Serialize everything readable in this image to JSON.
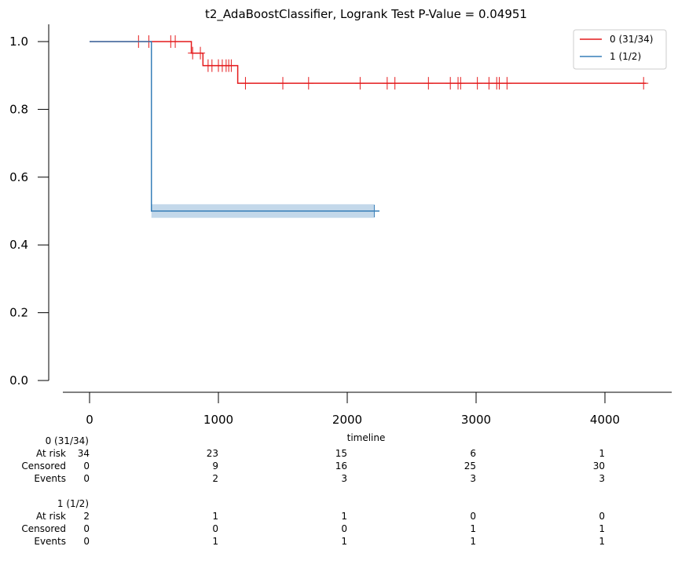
{
  "chart_data": {
    "type": "line",
    "title": "t2_AdaBoostClassifier, Logrank Test P-Value = 0.04951",
    "xlabel": "timeline",
    "ylabel": "",
    "xlim": [
      -200,
      4500
    ],
    "ylim": [
      0.0,
      1.05
    ],
    "xticks": [
      0,
      1000,
      2000,
      3000,
      4000
    ],
    "xtick_labels": [
      "0",
      "1000",
      "2000",
      "3000",
      "4000"
    ],
    "yticks": [
      0.0,
      0.2,
      0.4,
      0.6,
      0.8,
      1.0
    ],
    "ytick_labels": [
      "0.0",
      "0.2",
      "0.4",
      "0.6",
      "0.8",
      "1.0"
    ],
    "grid": false,
    "legend_position": "top-right",
    "series": [
      {
        "name": "0 (31/34)",
        "color": "#e41a1c",
        "steps": [
          [
            0,
            1.0
          ],
          [
            790,
            0.966
          ],
          [
            880,
            0.929
          ],
          [
            1150,
            0.877
          ],
          [
            4320,
            0.877
          ]
        ],
        "censor_times": [
          380,
          460,
          630,
          665,
          800,
          860,
          920,
          950,
          1000,
          1030,
          1060,
          1080,
          1100,
          1210,
          1500,
          1700,
          2100,
          2310,
          2370,
          2630,
          2800,
          2860,
          2880,
          3010,
          3100,
          3160,
          3180,
          3240,
          4300
        ]
      },
      {
        "name": "1 (1/2)",
        "color": "#377eb8",
        "steps": [
          [
            0,
            1.0
          ],
          [
            480,
            0.5
          ],
          [
            2250,
            0.5
          ]
        ],
        "ci_band": {
          "x": [
            480,
            2210
          ],
          "lower": 0.48,
          "upper": 0.52
        },
        "censor_times": [
          2210
        ]
      }
    ],
    "at_risk_table": {
      "x_positions": [
        0,
        1000,
        2000,
        3000,
        4000
      ],
      "groups": [
        {
          "label": "0 (31/34)",
          "rows": [
            {
              "name": "At risk",
              "values": [
                "34",
                "23",
                "15",
                "6",
                "1"
              ]
            },
            {
              "name": "Censored",
              "values": [
                "0",
                "9",
                "16",
                "25",
                "30"
              ]
            },
            {
              "name": "Events",
              "values": [
                "0",
                "2",
                "3",
                "3",
                "3"
              ]
            }
          ]
        },
        {
          "label": "1 (1/2)",
          "rows": [
            {
              "name": "At risk",
              "values": [
                "2",
                "1",
                "1",
                "0",
                "0"
              ]
            },
            {
              "name": "Censored",
              "values": [
                "0",
                "0",
                "0",
                "1",
                "1"
              ]
            },
            {
              "name": "Events",
              "values": [
                "0",
                "1",
                "1",
                "1",
                "1"
              ]
            }
          ]
        }
      ]
    }
  }
}
